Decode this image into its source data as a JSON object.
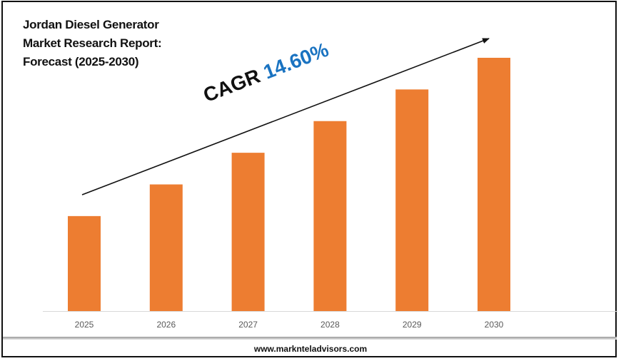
{
  "chart_data": {
    "type": "bar",
    "title_lines": [
      "Jordan Diesel Generator",
      "Market Research Report:",
      "Forecast (2025-2030)"
    ],
    "categories": [
      "2025",
      "2026",
      "2027",
      "2028",
      "2029",
      "2030"
    ],
    "values": [
      37.5,
      50,
      62.5,
      75,
      87.5,
      100
    ],
    "value_units": "relative (no axis values shown; 2030 = 100)",
    "bar_color": "#ed7d31",
    "annotation": {
      "label": "CAGR",
      "value": "14.60%",
      "value_color": "#1a73c1"
    },
    "trend_arrow": true,
    "grid": false,
    "yaxis_visible": false,
    "xlabel": "",
    "ylabel": ""
  },
  "footer": {
    "website": "www.marknteladvisors.com"
  }
}
